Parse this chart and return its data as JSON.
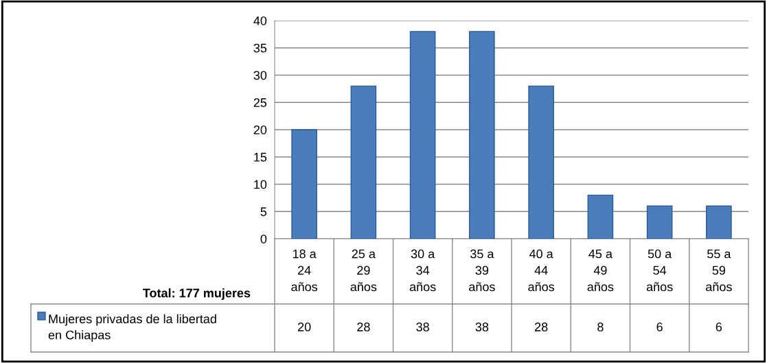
{
  "chart_data": {
    "type": "bar",
    "categories": [
      "18 a\n24\naños",
      "25 a\n29\naños",
      "30 a\n34\naños",
      "35 a\n39\naños",
      "40 a\n44\naños",
      "45 a\n49\naños",
      "50 a\n54\naños",
      "55 a\n59\naños"
    ],
    "series": [
      {
        "name": "Mujeres privadas de la libertad\nen Chiapas",
        "color": "#4a7ebb",
        "values": [
          20,
          28,
          38,
          38,
          28,
          8,
          6,
          6
        ]
      }
    ],
    "ylim": [
      0,
      40
    ],
    "yticks": [
      0,
      5,
      10,
      15,
      20,
      25,
      30,
      35,
      40
    ],
    "grid": "y",
    "data_labels": true,
    "annotations": [
      "Total: 177 mujeres"
    ]
  }
}
